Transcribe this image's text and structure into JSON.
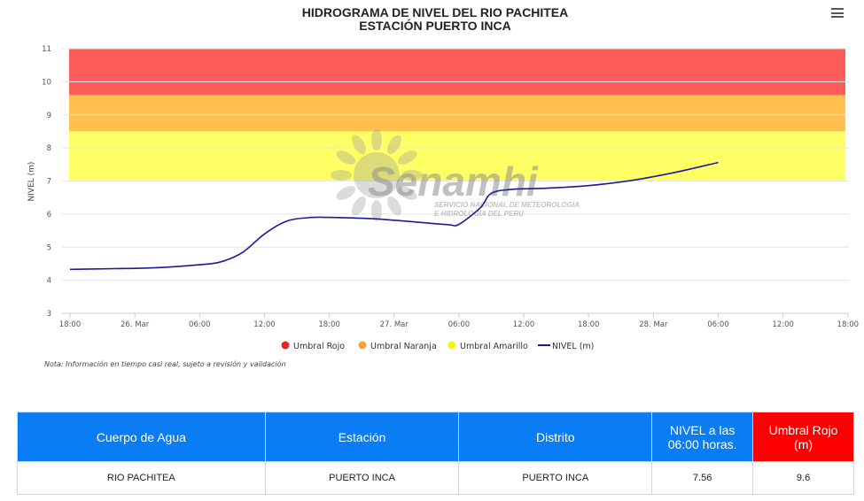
{
  "chart_data": {
    "type": "line",
    "title": "HIDROGRAMA DE NIVEL DEL RIO PACHITEA",
    "subtitle": "ESTACIÓN PUERTO INCA",
    "ylabel": "NIVEL (m)",
    "xlabel": "",
    "ylim": [
      3,
      11
    ],
    "yticks": [
      "3",
      "4",
      "5",
      "6",
      "7",
      "8",
      "9",
      "10",
      "11"
    ],
    "xlim": [
      "2024-03-25T18:00",
      "2024-03-28T19:00"
    ],
    "x_ticks": [
      {
        "x": "2024-03-25T18:00",
        "label": "18:00"
      },
      {
        "x": "2024-03-26T00:00",
        "label": "26. Mar"
      },
      {
        "x": "2024-03-26T06:00",
        "label": "06:00"
      },
      {
        "x": "2024-03-26T12:00",
        "label": "12:00"
      },
      {
        "x": "2024-03-26T18:00",
        "label": "18:00"
      },
      {
        "x": "2024-03-27T00:00",
        "label": "27. Mar"
      },
      {
        "x": "2024-03-27T06:00",
        "label": "06:00"
      },
      {
        "x": "2024-03-27T12:00",
        "label": "12:00"
      },
      {
        "x": "2024-03-27T18:00",
        "label": "18:00"
      },
      {
        "x": "2024-03-28T00:00",
        "label": "28. Mar"
      },
      {
        "x": "2024-03-28T06:00",
        "label": "06:00"
      },
      {
        "x": "2024-03-28T12:00",
        "label": "12:00"
      },
      {
        "x": "2024-03-28T18:00",
        "label": "18:00"
      }
    ],
    "bands": [
      {
        "name": "Umbral Amarillo",
        "from": 7.0,
        "to": 8.5,
        "color": "#ffff66"
      },
      {
        "name": "Umbral Naranja",
        "from": 8.5,
        "to": 9.6,
        "color": "#ffc04d"
      },
      {
        "name": "Umbral Rojo",
        "from": 9.6,
        "to": 11.0,
        "color": "#ff5c5c"
      }
    ],
    "series": [
      {
        "name": "NIVEL (m)",
        "color": "#1a1aa0",
        "points": [
          {
            "x": "2024-03-25T18:00",
            "y": 4.33
          },
          {
            "x": "2024-03-25T22:00",
            "y": 4.35
          },
          {
            "x": "2024-03-26T02:00",
            "y": 4.38
          },
          {
            "x": "2024-03-26T06:00",
            "y": 4.47
          },
          {
            "x": "2024-03-26T08:00",
            "y": 4.56
          },
          {
            "x": "2024-03-26T10:00",
            "y": 4.85
          },
          {
            "x": "2024-03-26T12:00",
            "y": 5.4
          },
          {
            "x": "2024-03-26T14:00",
            "y": 5.78
          },
          {
            "x": "2024-03-26T16:00",
            "y": 5.89
          },
          {
            "x": "2024-03-26T18:00",
            "y": 5.9
          },
          {
            "x": "2024-03-26T22:00",
            "y": 5.86
          },
          {
            "x": "2024-03-27T02:00",
            "y": 5.76
          },
          {
            "x": "2024-03-27T05:00",
            "y": 5.68
          },
          {
            "x": "2024-03-27T06:00",
            "y": 5.69
          },
          {
            "x": "2024-03-27T08:00",
            "y": 6.2
          },
          {
            "x": "2024-03-27T09:00",
            "y": 6.63
          },
          {
            "x": "2024-03-27T11:00",
            "y": 6.75
          },
          {
            "x": "2024-03-27T14:00",
            "y": 6.78
          },
          {
            "x": "2024-03-27T18:00",
            "y": 6.86
          },
          {
            "x": "2024-03-27T22:00",
            "y": 7.02
          },
          {
            "x": "2024-03-28T02:00",
            "y": 7.26
          },
          {
            "x": "2024-03-28T06:00",
            "y": 7.56
          }
        ]
      }
    ],
    "legend": {
      "position": "bottom",
      "items": [
        {
          "label": "Umbral Rojo",
          "color": "#e52620",
          "symbol": "circle"
        },
        {
          "label": "Umbral Naranja",
          "color": "#f7a23a",
          "symbol": "circle"
        },
        {
          "label": "Umbral Amarillo",
          "color": "#f2f218",
          "symbol": "circle"
        },
        {
          "label": "NIVEL (m)",
          "color": "#1a1aa0",
          "symbol": "line"
        }
      ]
    },
    "grid": true,
    "watermark": {
      "text": "Senamhi",
      "subtext": [
        "SERVICIO NACIONAL DE METEOROLOGÍA",
        "E HIDROLOGÍA DEL PERÚ"
      ]
    }
  },
  "note": "Nota: Información en tiempo casi real, sujeto a revisión y validación",
  "menu": {
    "icon": "hamburger-menu-icon"
  },
  "table": {
    "headers": {
      "water_body": "Cuerpo de Agua",
      "station": "Estación",
      "district": "Distrito",
      "level_line1": "NIVEL a las",
      "level_line2": "06:00 horas.",
      "red_threshold": "Umbral Rojo (m)"
    },
    "row": {
      "water_body": "RIO PACHITEA",
      "station": "PUERTO INCA",
      "district": "PUERTO INCA",
      "level": "7.56",
      "red_threshold": "9.6"
    },
    "colors": {
      "header": "#0a7cf4",
      "red_header": "#fb0000"
    }
  }
}
